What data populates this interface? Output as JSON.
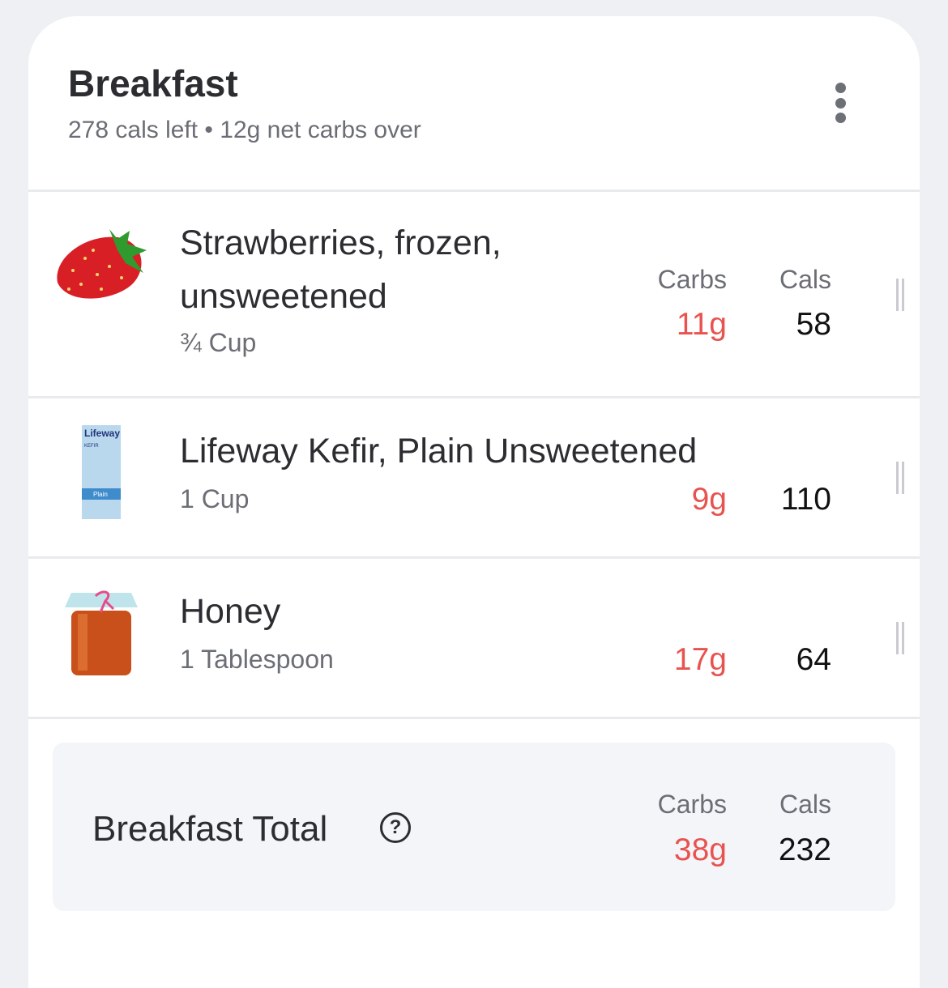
{
  "meal": {
    "title": "Breakfast",
    "subtitle": "278 cals left • 12g net carbs over",
    "menu_icon": "more-vertical-icon"
  },
  "columns": {
    "carbs": "Carbs",
    "cals": "Cals"
  },
  "items": [
    {
      "name_line1": "Strawberries, frozen,",
      "name_line2": "unsweetened",
      "serving": "¾ Cup",
      "carbs": "11g",
      "cals": "58",
      "image": "strawberry"
    },
    {
      "name_line1": "Lifeway Kefir, Plain Unsweetened",
      "serving": "1 Cup",
      "carbs": "9g",
      "cals": "110",
      "image": "kefir-carton",
      "image_text": "Lifeway KEFIR Plain"
    },
    {
      "name_line1": "Honey",
      "serving": "1 Tablespoon",
      "carbs": "17g",
      "cals": "64",
      "image": "honey-jar"
    }
  ],
  "total": {
    "label": "Breakfast Total",
    "help_icon": "?",
    "carbs": "38g",
    "cals": "232"
  },
  "colors": {
    "carbs": "#e8534f",
    "background": "#eef0f4",
    "total_bg": "#f4f5f9"
  }
}
